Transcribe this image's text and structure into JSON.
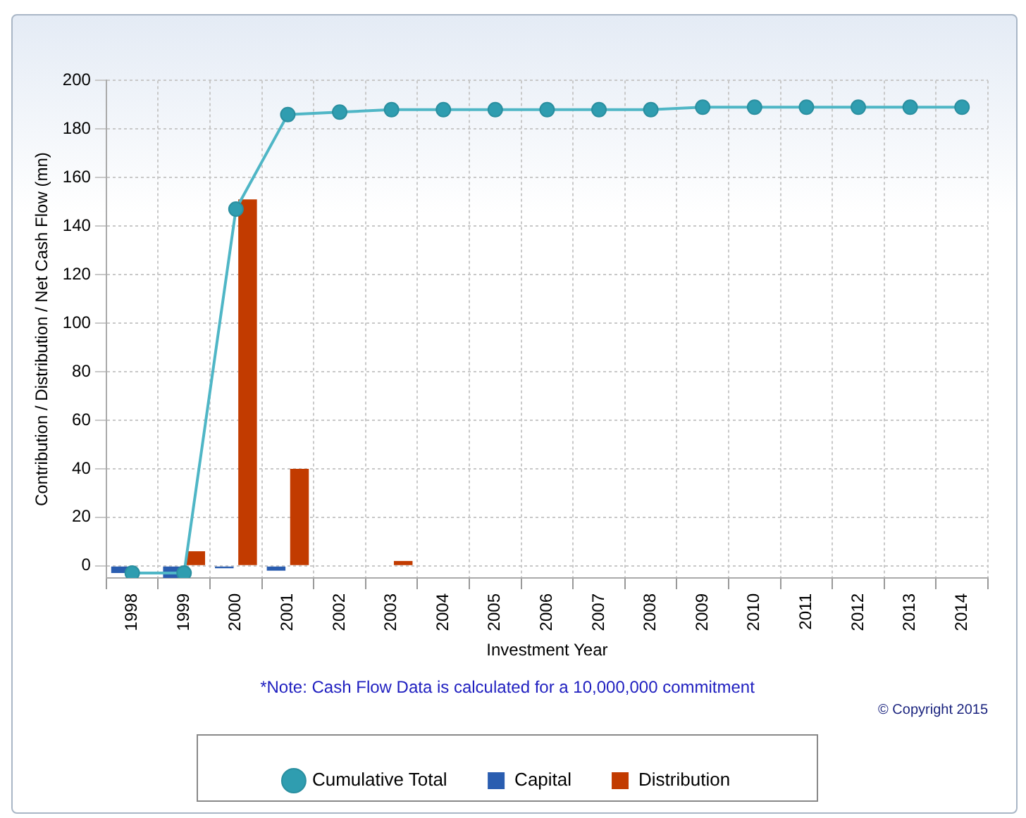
{
  "chart_data": {
    "type": "bar",
    "xlabel": "Investment Year",
    "ylabel": "Contribution / Distribution / Net Cash Flow (mn)",
    "categories": [
      "1998",
      "1999",
      "2000",
      "2001",
      "2002",
      "2003",
      "2004",
      "2005",
      "2006",
      "2007",
      "2008",
      "2009",
      "2010",
      "2011",
      "2012",
      "2013",
      "2014"
    ],
    "series": [
      {
        "name": "Capital",
        "color": "#2a5db0",
        "values": [
          -3,
          -5,
          -1,
          -2,
          0,
          0,
          0,
          0,
          0,
          0,
          0,
          0,
          0,
          0,
          0,
          0,
          0
        ]
      },
      {
        "name": "Distribution",
        "color": "#c23b00",
        "values": [
          0,
          6,
          151,
          40,
          0,
          2,
          0,
          0,
          0,
          0,
          0,
          0,
          0,
          0,
          0,
          0,
          0
        ]
      },
      {
        "name": "Cumulative Total",
        "type": "line",
        "color": "#4fb6c6",
        "values": [
          -3,
          -3,
          147,
          186,
          187,
          188,
          188,
          188,
          188,
          188,
          188,
          189,
          189,
          189,
          189,
          189,
          189
        ]
      }
    ],
    "ylim": [
      -5,
      200
    ],
    "yticks": [
      0,
      20,
      40,
      60,
      80,
      100,
      120,
      140,
      160,
      180,
      200
    ],
    "grid": true,
    "legend": "bottom",
    "marker": "circle",
    "line_style": "solid",
    "annotations": [
      "*Note: Cash Flow Data is calculated for a 10,000,000 commitment",
      "© Copyright 2015"
    ]
  }
}
